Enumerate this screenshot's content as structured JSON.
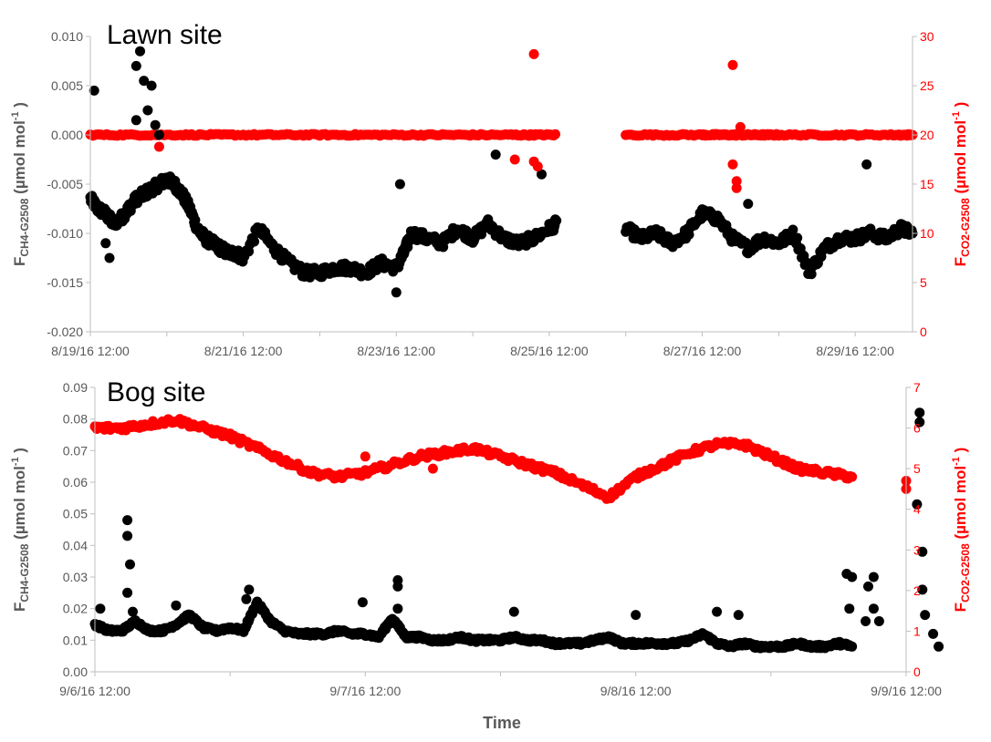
{
  "xlabel": "Time",
  "colors": {
    "ch4": "#000000",
    "co2": "#ff0000",
    "axis": "#bfbfbf",
    "text": "#595959"
  },
  "chart_data": [
    {
      "id": "lawn",
      "type": "scatter",
      "title": "Lawn site",
      "ylabel": {
        "main": "F",
        "sub": "CH4-G2508",
        "unit": " (µmol mol",
        "sup": "-1",
        "end": " )"
      },
      "y2label": {
        "main": "F",
        "sub": "CO2-G2508",
        "unit": " (µmol mol",
        "sup": "-1",
        "end": " )"
      },
      "xlim": [
        0,
        10.75
      ],
      "ylim": [
        -0.02,
        0.01
      ],
      "y2lim": [
        0,
        30
      ],
      "yticks": [
        "-0.020",
        "-0.015",
        "-0.010",
        "-0.005",
        "0.000",
        "0.005",
        "0.010"
      ],
      "y2ticks": [
        "0",
        "5",
        "10",
        "15",
        "20",
        "25",
        "30"
      ],
      "xtick_labels": [
        "8/19/16 12:00",
        "8/21/16 12:00",
        "8/23/16 12:00",
        "8/25/16 12:00",
        "8/27/16 12:00",
        "8/29/16 12:00"
      ],
      "xtick_days": [
        0,
        2,
        4,
        6,
        8,
        10
      ],
      "gap": [
        6.1,
        7.0
      ],
      "series": [
        {
          "key": "ch4",
          "axis": "left",
          "x": [
            0.0,
            0.1,
            0.2,
            0.3,
            0.4,
            0.5,
            0.6,
            0.7,
            0.8,
            0.9,
            1.0,
            1.1,
            1.2,
            1.3,
            1.4,
            1.5,
            1.6,
            1.7,
            1.8,
            1.9,
            2.0,
            2.2,
            2.4,
            2.6,
            2.8,
            3.0,
            3.2,
            3.4,
            3.6,
            3.8,
            4.0,
            4.1,
            4.2,
            4.4,
            4.6,
            4.8,
            5.0,
            5.2,
            5.4,
            5.6,
            5.8,
            6.0,
            6.1,
            7.0,
            7.2,
            7.4,
            7.6,
            7.8,
            8.0,
            8.2,
            8.4,
            8.6,
            8.8,
            9.0,
            9.2,
            9.4,
            9.6,
            9.8,
            10.0,
            10.2,
            10.4,
            10.6,
            10.75
          ],
          "y": [
            -0.0065,
            -0.0075,
            -0.008,
            -0.009,
            -0.0085,
            -0.0075,
            -0.0065,
            -0.006,
            -0.0055,
            -0.005,
            -0.0045,
            -0.005,
            -0.006,
            -0.0075,
            -0.0095,
            -0.0105,
            -0.011,
            -0.0115,
            -0.012,
            -0.012,
            -0.0125,
            -0.0095,
            -0.0115,
            -0.013,
            -0.014,
            -0.014,
            -0.0135,
            -0.0135,
            -0.014,
            -0.013,
            -0.0135,
            -0.012,
            -0.01,
            -0.0105,
            -0.011,
            -0.0095,
            -0.0105,
            -0.009,
            -0.0105,
            -0.011,
            -0.0105,
            -0.0095,
            -0.009,
            -0.0095,
            -0.0105,
            -0.01,
            -0.011,
            -0.01,
            -0.008,
            -0.0085,
            -0.0105,
            -0.0115,
            -0.0105,
            -0.011,
            -0.01,
            -0.014,
            -0.0115,
            -0.0105,
            -0.0105,
            -0.01,
            -0.0105,
            -0.0095,
            -0.01
          ]
        },
        {
          "key": "co2",
          "axis": "right",
          "x": [
            0.0,
            0.5,
            1.0,
            1.5,
            2.0,
            2.5,
            3.0,
            3.5,
            4.0,
            4.5,
            5.0,
            5.5,
            5.8,
            6.1,
            7.0,
            7.5,
            8.0,
            8.2,
            8.4,
            8.6,
            8.8,
            9.0,
            9.5,
            10.0,
            10.5,
            10.75
          ],
          "y": [
            20,
            20,
            20,
            20,
            20,
            20,
            20,
            20,
            20,
            20,
            20,
            20,
            20,
            20,
            20,
            20,
            20,
            20,
            20,
            20,
            20,
            20,
            20,
            20,
            20,
            20
          ]
        }
      ],
      "outliers_ch4": [
        [
          0.05,
          0.0045
        ],
        [
          0.65,
          0.0085
        ],
        [
          0.6,
          0.007
        ],
        [
          0.7,
          0.0055
        ],
        [
          0.8,
          0.005
        ],
        [
          0.75,
          0.0025
        ],
        [
          0.6,
          0.0015
        ],
        [
          0.85,
          0.001
        ],
        [
          0.9,
          0.0
        ],
        [
          0.2,
          -0.011
        ],
        [
          0.25,
          -0.0125
        ],
        [
          4.0,
          -0.016
        ],
        [
          4.05,
          -0.005
        ],
        [
          5.3,
          -0.002
        ],
        [
          5.9,
          -0.004
        ],
        [
          10.15,
          -0.003
        ],
        [
          8.6,
          -0.007
        ]
      ],
      "outliers_co2": [
        [
          5.8,
          28.2
        ],
        [
          8.4,
          27.1
        ],
        [
          8.45,
          15.3
        ],
        [
          8.45,
          14.6
        ],
        [
          5.55,
          17.5
        ],
        [
          5.8,
          17.3
        ],
        [
          5.85,
          16.8
        ],
        [
          8.4,
          17.0
        ],
        [
          0.9,
          18.8
        ],
        [
          8.5,
          20.8
        ]
      ]
    },
    {
      "id": "bog",
      "type": "scatter",
      "title": "Bog site",
      "ylabel": {
        "main": "F",
        "sub": "CH4-G2508",
        "unit": " (µmol mol",
        "sup": "-1",
        "end": " )"
      },
      "y2label": {
        "main": "F",
        "sub": "CO2-G2508",
        "unit": " (µmol mol",
        "sup": "-1",
        "end": " )"
      },
      "xlim": [
        0,
        3
      ],
      "ylim": [
        0,
        0.09
      ],
      "y2lim": [
        0,
        7
      ],
      "yticks": [
        "0.00",
        "0.01",
        "0.02",
        "0.03",
        "0.04",
        "0.05",
        "0.06",
        "0.07",
        "0.08",
        "0.09"
      ],
      "y2ticks": [
        "0",
        "1",
        "2",
        "3",
        "4",
        "5",
        "6",
        "7"
      ],
      "xtick_labels": [
        "9/6/16 12:00",
        "9/7/16 12:00",
        "9/8/16 12:00",
        "9/9/16 12:00"
      ],
      "xtick_days": [
        0,
        1,
        2,
        3
      ],
      "series": [
        {
          "key": "ch4",
          "axis": "left",
          "x": [
            0.0,
            0.05,
            0.1,
            0.15,
            0.2,
            0.25,
            0.3,
            0.35,
            0.4,
            0.45,
            0.5,
            0.55,
            0.6,
            0.65,
            0.7,
            0.75,
            0.8,
            0.85,
            0.9,
            0.95,
            1.0,
            1.05,
            1.1,
            1.15,
            1.2,
            1.25,
            1.3,
            1.35,
            1.4,
            1.45,
            1.5,
            1.55,
            1.6,
            1.65,
            1.7,
            1.75,
            1.8,
            1.85,
            1.9,
            1.95,
            2.0,
            2.05,
            2.1,
            2.15,
            2.2,
            2.25,
            2.3,
            2.35,
            2.4,
            2.45,
            2.5,
            2.55,
            2.6,
            2.65,
            2.7,
            2.75,
            2.8
          ],
          "y": [
            0.015,
            0.013,
            0.013,
            0.016,
            0.013,
            0.013,
            0.015,
            0.018,
            0.014,
            0.013,
            0.014,
            0.013,
            0.022,
            0.016,
            0.013,
            0.012,
            0.012,
            0.012,
            0.013,
            0.012,
            0.012,
            0.011,
            0.017,
            0.011,
            0.011,
            0.01,
            0.01,
            0.011,
            0.01,
            0.01,
            0.01,
            0.011,
            0.01,
            0.01,
            0.009,
            0.009,
            0.009,
            0.01,
            0.011,
            0.009,
            0.009,
            0.009,
            0.009,
            0.009,
            0.01,
            0.012,
            0.009,
            0.008,
            0.009,
            0.008,
            0.008,
            0.008,
            0.009,
            0.008,
            0.008,
            0.009,
            0.008
          ]
        },
        {
          "key": "co2",
          "axis": "right",
          "x": [
            0.0,
            0.1,
            0.2,
            0.3,
            0.4,
            0.5,
            0.6,
            0.7,
            0.8,
            0.9,
            1.0,
            1.1,
            1.2,
            1.3,
            1.4,
            1.5,
            1.6,
            1.7,
            1.8,
            1.9,
            2.0,
            2.1,
            2.2,
            2.3,
            2.4,
            2.5,
            2.6,
            2.7,
            2.8
          ],
          "y": [
            6.0,
            6.0,
            6.1,
            6.2,
            6.0,
            5.8,
            5.5,
            5.2,
            4.9,
            4.8,
            4.9,
            5.1,
            5.3,
            5.4,
            5.5,
            5.3,
            5.1,
            4.9,
            4.6,
            4.3,
            4.8,
            5.1,
            5.4,
            5.6,
            5.6,
            5.3,
            5.0,
            4.9,
            4.8
          ]
        }
      ],
      "outliers_ch4": [
        [
          0.02,
          0.02
        ],
        [
          0.12,
          0.048
        ],
        [
          0.12,
          0.043
        ],
        [
          0.13,
          0.034
        ],
        [
          0.12,
          0.025
        ],
        [
          0.14,
          0.019
        ],
        [
          0.3,
          0.021
        ],
        [
          0.57,
          0.026
        ],
        [
          0.56,
          0.023
        ],
        [
          0.99,
          0.022
        ],
        [
          1.12,
          0.029
        ],
        [
          1.12,
          0.027
        ],
        [
          1.12,
          0.02
        ],
        [
          1.55,
          0.019
        ],
        [
          2.38,
          0.018
        ],
        [
          2.0,
          0.018
        ],
        [
          2.3,
          0.019
        ],
        [
          2.78,
          0.031
        ],
        [
          2.8,
          0.03
        ],
        [
          2.79,
          0.02
        ],
        [
          2.85,
          0.016
        ],
        [
          2.86,
          0.027
        ],
        [
          2.88,
          0.03
        ],
        [
          2.88,
          0.02
        ],
        [
          2.9,
          0.016
        ],
        [
          3.05,
          0.082
        ],
        [
          3.05,
          0.079
        ],
        [
          3.04,
          0.053
        ],
        [
          3.06,
          0.038
        ],
        [
          3.06,
          0.026
        ],
        [
          3.07,
          0.018
        ],
        [
          3.1,
          0.012
        ],
        [
          3.12,
          0.008
        ]
      ],
      "outliers_co2": [
        [
          1.0,
          5.3
        ],
        [
          1.25,
          5.0
        ],
        [
          3.0,
          4.7
        ],
        [
          3.0,
          4.5
        ]
      ]
    }
  ]
}
